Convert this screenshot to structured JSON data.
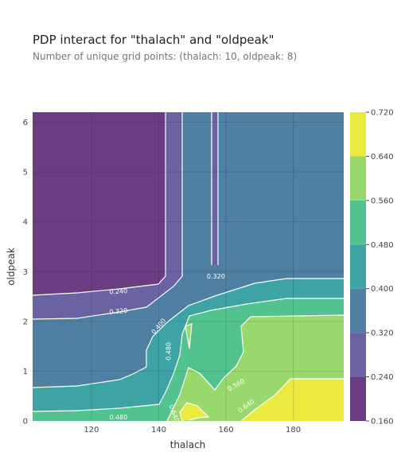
{
  "chart_data": {
    "type": "heatmap",
    "title": "PDP interact for \"thalach\" and \"oldpeak\"",
    "subtitle": "Number of unique grid points: (thalach: 10, oldpeak: 8)",
    "xlabel": "thalach",
    "ylabel": "oldpeak",
    "xlim": [
      102.5,
      195
    ],
    "ylim": [
      0,
      6.2
    ],
    "x_ticks": [
      120,
      140,
      160,
      180
    ],
    "y_ticks": [
      0,
      1,
      2,
      3,
      4,
      5,
      6
    ],
    "grid": true,
    "colorbar": {
      "levels": [
        0.16,
        0.24,
        0.32,
        0.4,
        0.48,
        0.56,
        0.64,
        0.72
      ],
      "tick_labels": [
        "0.160",
        "0.240",
        "0.320",
        "0.400",
        "0.480",
        "0.560",
        "0.640",
        "0.720"
      ],
      "colors": [
        "#6a3d82",
        "#6a62a2",
        "#4f7fa2",
        "#3ea3a3",
        "#52c38f",
        "#98d86c",
        "#eaea40"
      ]
    },
    "contour_labels": [
      {
        "text": "0.240",
        "x": 128,
        "y": 2.6
      },
      {
        "text": "0.320",
        "x": 128,
        "y": 2.2
      },
      {
        "text": "0.400",
        "x": 140,
        "y": 1.9
      },
      {
        "text": "0.320",
        "x": 157,
        "y": 2.9
      },
      {
        "text": "0.480",
        "x": 143,
        "y": 1.4
      },
      {
        "text": "0.560",
        "x": 163,
        "y": 0.72
      },
      {
        "text": "0.640",
        "x": 166,
        "y": 0.3
      },
      {
        "text": "0.480",
        "x": 128,
        "y": 0.07
      },
      {
        "text": "0.640",
        "x": 144.5,
        "y": 0.15
      }
    ]
  }
}
